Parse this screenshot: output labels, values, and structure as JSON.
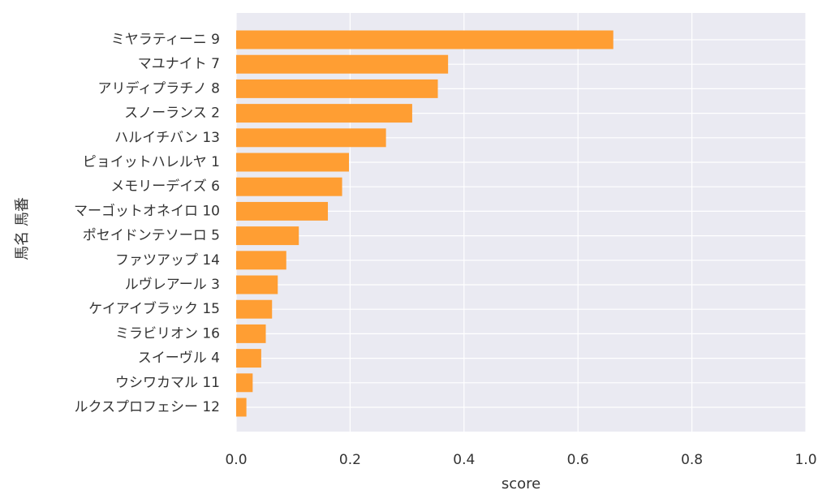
{
  "chart_data": {
    "type": "bar",
    "orientation": "horizontal",
    "categories": [
      "ミヤラティーニ 9",
      "マユナイト 7",
      "アリディプラチノ 8",
      "スノーランス 2",
      "ハルイチバン 13",
      "ピョイットハレルヤ 1",
      "メモリーデイズ 6",
      "マーゴットオネイロ 10",
      "ポセイドンテソーロ 5",
      "ファツアップ 14",
      "ルヴレアール 3",
      "ケイアイブラック 15",
      "ミラビリオン 16",
      "スイーヴル 4",
      "ウシワカマル 11",
      "ルクスプロフェシー 12"
    ],
    "values": [
      0.662,
      0.372,
      0.354,
      0.309,
      0.263,
      0.198,
      0.186,
      0.161,
      0.11,
      0.088,
      0.073,
      0.063,
      0.052,
      0.044,
      0.029,
      0.018
    ],
    "xlabel": "score",
    "ylabel": "馬名 馬番",
    "xlim": [
      0,
      1.0
    ],
    "xticks": [
      "0.0",
      "0.2",
      "0.4",
      "0.6",
      "0.8",
      "1.0"
    ],
    "grid": true,
    "bar_color": "#ff9e33",
    "background_color": "#eaeaf2",
    "grid_color": "#ffffff"
  }
}
